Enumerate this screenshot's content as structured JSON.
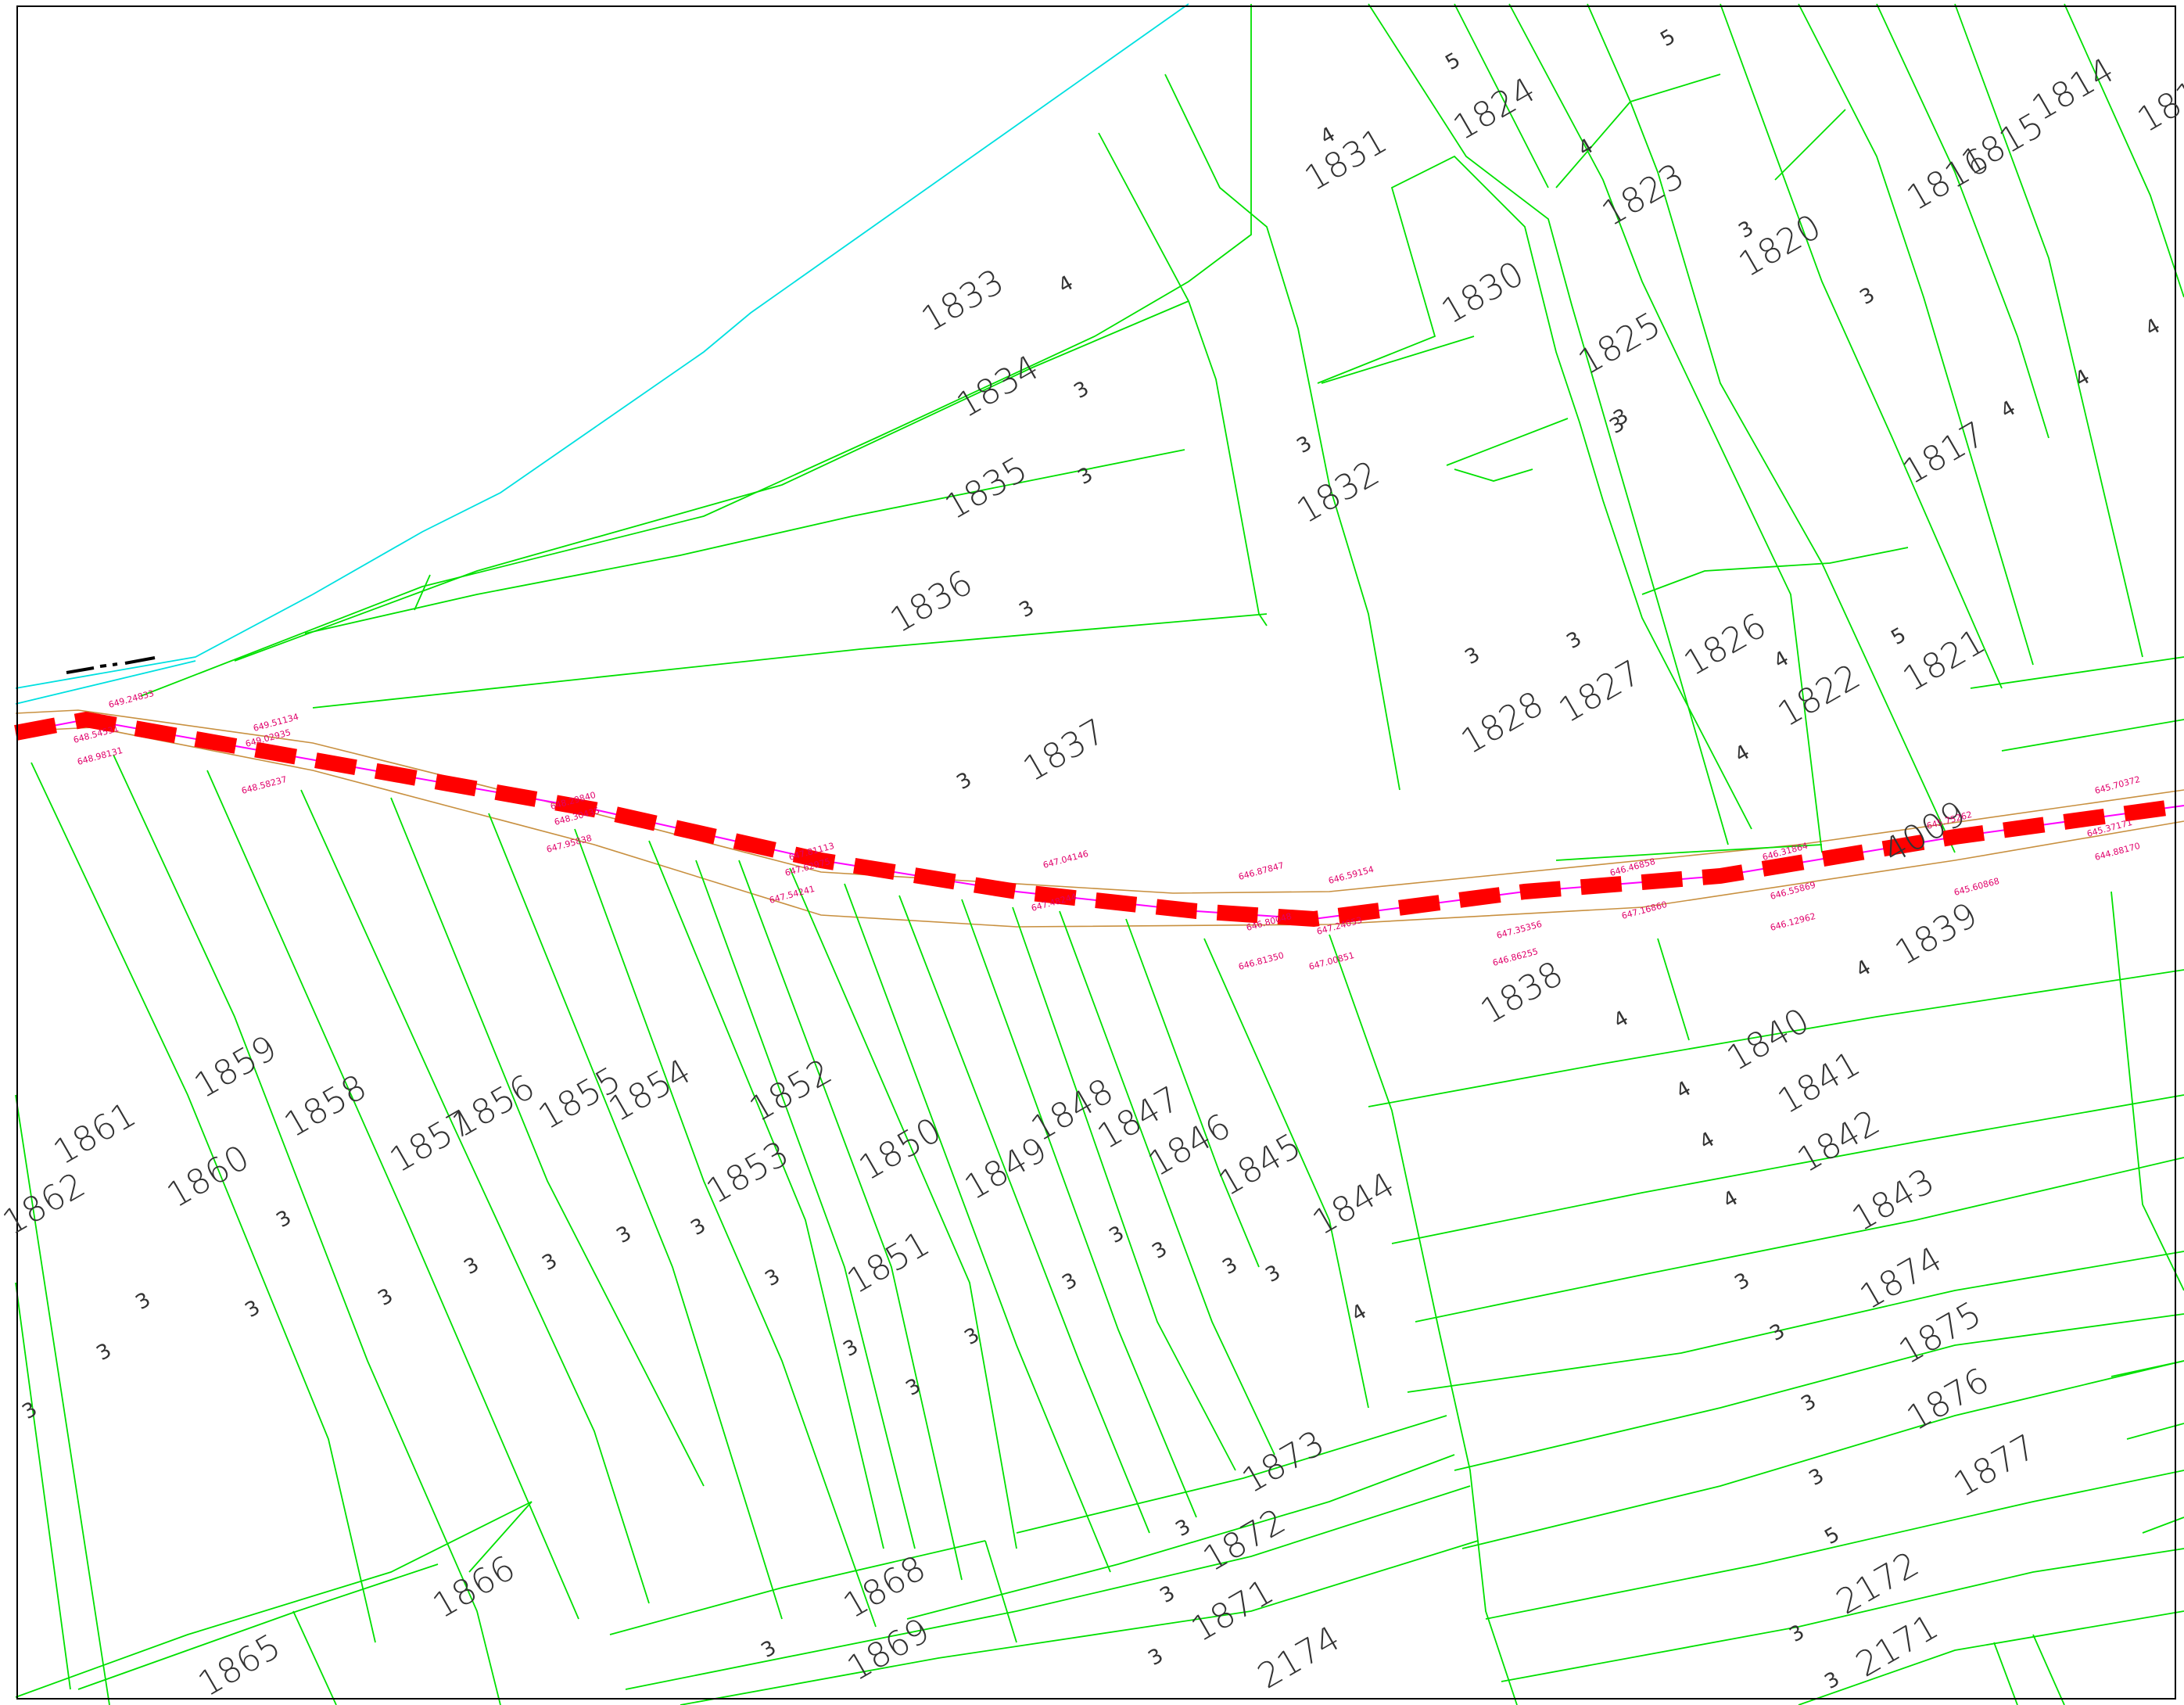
{
  "map": {
    "colors": {
      "parcel_boundary": "#00e000",
      "waterway": "#00e0e0",
      "route": "#ff0000",
      "route_centerline": "#ff00ff",
      "road_edge": "#c89040",
      "elevation_label": "#e0006a",
      "parcel_text": "#333333"
    },
    "parcels": [
      {
        "id": "1824",
        "type": "5"
      },
      {
        "id": "1831",
        "type": "4"
      },
      {
        "id": "1823",
        "type": "4"
      },
      {
        "id": "1820",
        "type": "3"
      },
      {
        "id": "1816",
        "type": ""
      },
      {
        "id": "1815",
        "type": ""
      },
      {
        "id": "1814",
        "type": ""
      },
      {
        "id": "1833",
        "type": "4"
      },
      {
        "id": "1834",
        "type": "3"
      },
      {
        "id": "1835",
        "type": "3"
      },
      {
        "id": "1836",
        "type": "3"
      },
      {
        "id": "1837",
        "type": "3"
      },
      {
        "id": "1830",
        "type": ""
      },
      {
        "id": "1825",
        "type": "3"
      },
      {
        "id": "1832",
        "type": "3"
      },
      {
        "id": "1817",
        "type": "4"
      },
      {
        "id": "1828",
        "type": "3"
      },
      {
        "id": "1827",
        "type": "3"
      },
      {
        "id": "1826",
        "type": ""
      },
      {
        "id": "1822",
        "type": "4"
      },
      {
        "id": "1821",
        "type": "5"
      },
      {
        "id": "1838",
        "type": "4"
      },
      {
        "id": "1839",
        "type": "4"
      },
      {
        "id": "1840",
        "type": "4"
      },
      {
        "id": "1841",
        "type": "4"
      },
      {
        "id": "1842",
        "type": "4"
      },
      {
        "id": "1843",
        "type": "3"
      },
      {
        "id": "1874",
        "type": "3"
      },
      {
        "id": "1875",
        "type": "3"
      },
      {
        "id": "1876",
        "type": "3"
      },
      {
        "id": "1877",
        "type": "5"
      },
      {
        "id": "2172",
        "type": "3"
      },
      {
        "id": "2171",
        "type": "3"
      },
      {
        "id": "1861",
        "type": "3"
      },
      {
        "id": "1862",
        "type": "3"
      },
      {
        "id": "1860",
        "type": "3"
      },
      {
        "id": "1859",
        "type": "3"
      },
      {
        "id": "1858",
        "type": "3"
      },
      {
        "id": "1857",
        "type": "3"
      },
      {
        "id": "1856",
        "type": "3"
      },
      {
        "id": "1855",
        "type": "3"
      },
      {
        "id": "1854",
        "type": "3"
      },
      {
        "id": "1853",
        "type": "3"
      },
      {
        "id": "1852",
        "type": "3"
      },
      {
        "id": "1851",
        "type": "3"
      },
      {
        "id": "1850",
        "type": "3"
      },
      {
        "id": "1849",
        "type": "3"
      },
      {
        "id": "1848",
        "type": "3"
      },
      {
        "id": "1847",
        "type": "3"
      },
      {
        "id": "1846",
        "type": "3"
      },
      {
        "id": "1845",
        "type": "3"
      },
      {
        "id": "1844",
        "type": "4"
      },
      {
        "id": "1873",
        "type": "3"
      },
      {
        "id": "1872",
        "type": "3"
      },
      {
        "id": "1871",
        "type": "3"
      },
      {
        "id": "2174",
        "type": ""
      },
      {
        "id": "1868",
        "type": "3"
      },
      {
        "id": "1869",
        "type": ""
      },
      {
        "id": "1866",
        "type": "3"
      },
      {
        "id": "1865",
        "type": ""
      },
      {
        "id": "4009",
        "type": ""
      },
      {
        "id": "181",
        "type": ""
      }
    ],
    "extra_type_codes": [
      "5",
      "3",
      "4",
      "4",
      "3",
      "4"
    ],
    "elevations": [
      "649.24833",
      "648.54531",
      "648.98131",
      "649.51134",
      "649.02935",
      "648.58237",
      "648.29840",
      "648.30435",
      "647.95838",
      "647.81113",
      "647.62975",
      "647.54241",
      "647.04146",
      "647.48244",
      "646.87847",
      "646.80048",
      "646.81350",
      "646.59154",
      "647.24053",
      "647.00851",
      "646.46858",
      "647.35356",
      "646.86255",
      "647.16860",
      "646.31864",
      "646.55869",
      "646.12962",
      "645.75262",
      "645.60868",
      "645.70372",
      "644.88170",
      "645.37171"
    ]
  }
}
